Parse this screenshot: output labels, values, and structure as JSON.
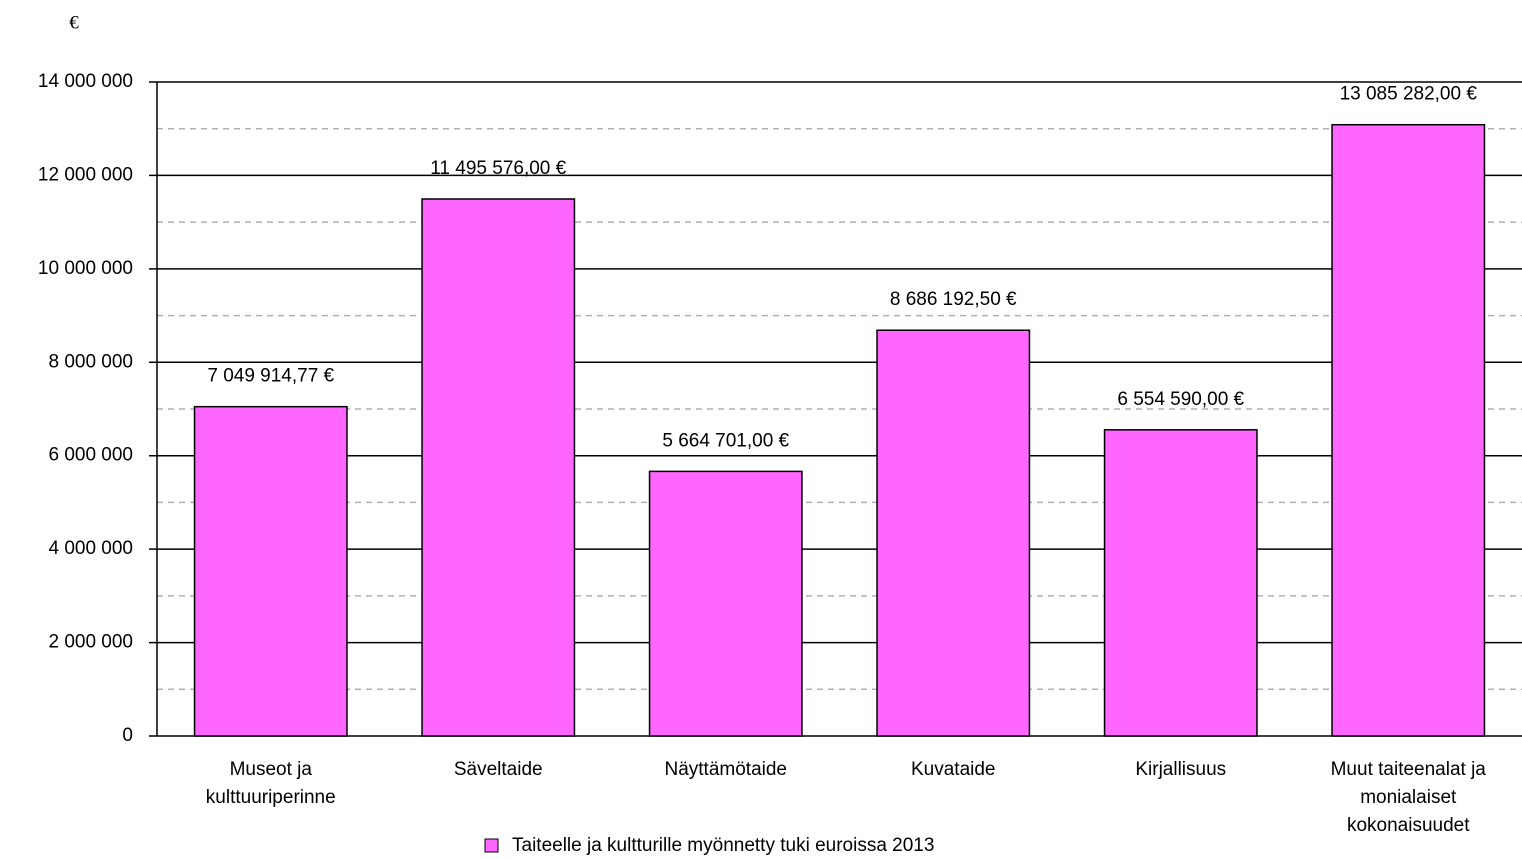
{
  "chart_data": {
    "type": "bar",
    "y_label": "€",
    "categories": [
      "Museot ja kulttuuriperinne",
      "Säveltaide",
      "Näyttämötaide",
      "Kuvataide",
      "Kirjallisuus",
      "Muut taiteenalat ja monialaiset kokonaisuudet"
    ],
    "series": [
      {
        "name": "Taiteelle ja kultturille myönnetty tuki euroissa 2013",
        "color": "#ff66ff",
        "values": [
          7049914.77,
          11495576,
          5664701,
          8686192.5,
          6554590,
          13085282
        ],
        "value_labels": [
          "7 049 914,77 €",
          "11 495 576,00 €",
          "5 664 701,00 €",
          "8 686 192,50 €",
          "6 554 590,00 €",
          "13 085 282,00 €"
        ]
      }
    ],
    "ylim": [
      0,
      14000000
    ],
    "yticks": [
      0,
      {
        "value": 2000000,
        "label": "2 000 000"
      },
      {
        "value": 4000000,
        "label": "4 000 000"
      },
      {
        "value": 6000000,
        "label": "6 000 000"
      },
      {
        "value": 8000000,
        "label": "8 000 000"
      },
      {
        "value": 10000000,
        "label": "10 000 000"
      },
      {
        "value": 12000000,
        "label": "12 000 000"
      },
      {
        "value": 14000000,
        "label": "14 000 000"
      }
    ],
    "yticks_minor": [
      1000000,
      3000000,
      5000000,
      7000000,
      9000000,
      11000000,
      13000000
    ],
    "grid": true,
    "legend": "bottom"
  }
}
